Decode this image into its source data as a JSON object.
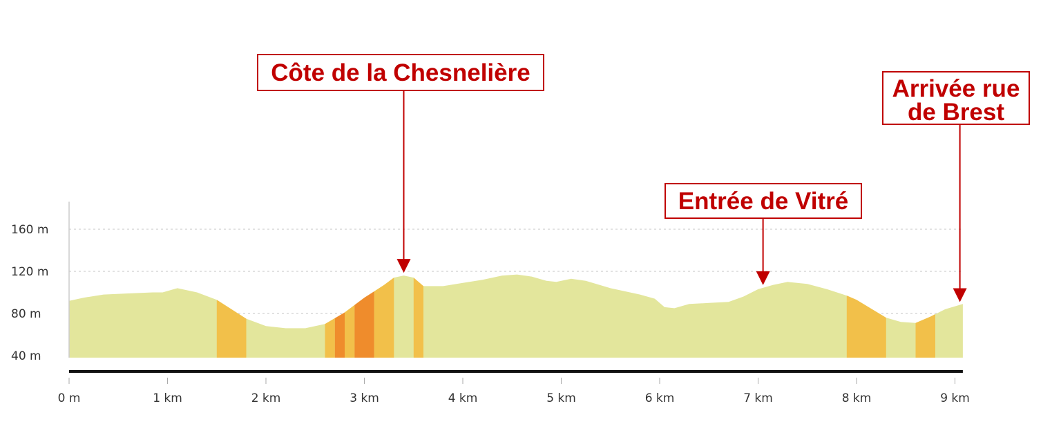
{
  "colors": {
    "flat": "#e3e69c",
    "moderate": "#f2c04a",
    "steep": "#ef8c2c",
    "annotation": "#c00000",
    "grid": "#d0d0d0",
    "baseline": "#111111"
  },
  "chart_data": {
    "type": "area",
    "title": "",
    "xlabel": "",
    "ylabel": "",
    "xlim": [
      0,
      9.08
    ],
    "ylim": [
      40,
      175
    ],
    "grid": true,
    "x_ticks": [
      "0 m",
      "1 km",
      "2 km",
      "3 km",
      "4 km",
      "5 km",
      "6 km",
      "7 km",
      "8 km",
      "9 km"
    ],
    "y_ticks": [
      "40 m",
      "80 m",
      "120 m",
      "160 m"
    ],
    "x_tick_values": [
      0,
      1,
      2,
      3,
      4,
      5,
      6,
      7,
      8,
      9
    ],
    "y_tick_values": [
      40,
      80,
      120,
      160
    ],
    "series": [
      {
        "profile": [
          [
            0,
            92
          ],
          [
            0.15,
            95
          ],
          [
            0.35,
            98
          ],
          [
            0.6,
            99
          ],
          [
            0.85,
            100
          ],
          [
            0.95,
            100
          ],
          [
            1.1,
            104
          ],
          [
            1.3,
            100
          ],
          [
            1.5,
            93
          ],
          [
            1.8,
            75
          ],
          [
            2.0,
            68
          ],
          [
            2.2,
            66
          ],
          [
            2.4,
            66
          ],
          [
            2.6,
            70
          ],
          [
            2.8,
            81
          ],
          [
            3.0,
            95
          ],
          [
            3.2,
            107
          ],
          [
            3.3,
            114
          ],
          [
            3.4,
            116
          ],
          [
            3.5,
            114
          ],
          [
            3.6,
            106
          ],
          [
            3.8,
            106
          ],
          [
            4.0,
            109
          ],
          [
            4.2,
            112
          ],
          [
            4.4,
            116
          ],
          [
            4.55,
            117
          ],
          [
            4.7,
            115
          ],
          [
            4.85,
            111
          ],
          [
            4.95,
            110
          ],
          [
            5.1,
            113
          ],
          [
            5.25,
            111
          ],
          [
            5.5,
            104
          ],
          [
            5.8,
            98
          ],
          [
            5.95,
            94
          ],
          [
            6.05,
            86
          ],
          [
            6.15,
            85
          ],
          [
            6.3,
            89
          ],
          [
            6.5,
            90
          ],
          [
            6.7,
            91
          ],
          [
            6.85,
            96
          ],
          [
            7.0,
            103
          ],
          [
            7.15,
            107
          ],
          [
            7.3,
            110
          ],
          [
            7.5,
            108
          ],
          [
            7.7,
            103
          ],
          [
            7.9,
            97
          ],
          [
            8.0,
            93
          ],
          [
            8.3,
            76
          ],
          [
            8.45,
            72
          ],
          [
            8.6,
            71
          ],
          [
            8.75,
            77
          ],
          [
            8.9,
            84
          ],
          [
            9.08,
            89
          ]
        ],
        "steep_segments": [
          {
            "from": 1.5,
            "to": 1.8,
            "level": "moderate"
          },
          {
            "from": 2.6,
            "to": 2.7,
            "level": "moderate"
          },
          {
            "from": 2.7,
            "to": 2.8,
            "level": "steep"
          },
          {
            "from": 2.8,
            "to": 2.9,
            "level": "moderate"
          },
          {
            "from": 2.9,
            "to": 3.1,
            "level": "steep"
          },
          {
            "from": 3.1,
            "to": 3.3,
            "level": "moderate"
          },
          {
            "from": 3.5,
            "to": 3.6,
            "level": "moderate"
          },
          {
            "from": 7.9,
            "to": 8.3,
            "level": "moderate"
          },
          {
            "from": 8.6,
            "to": 8.8,
            "level": "moderate"
          }
        ]
      }
    ],
    "annotations": [
      {
        "id": "chesneliere",
        "lines": [
          "Côte de la Chesnelière"
        ],
        "x": 3.4
      },
      {
        "id": "vitre",
        "lines": [
          "Entrée de Vitré"
        ],
        "x": 7.05
      },
      {
        "id": "arrivee",
        "lines": [
          "Arrivée rue",
          "de Brest"
        ],
        "x": 9.05
      }
    ]
  }
}
